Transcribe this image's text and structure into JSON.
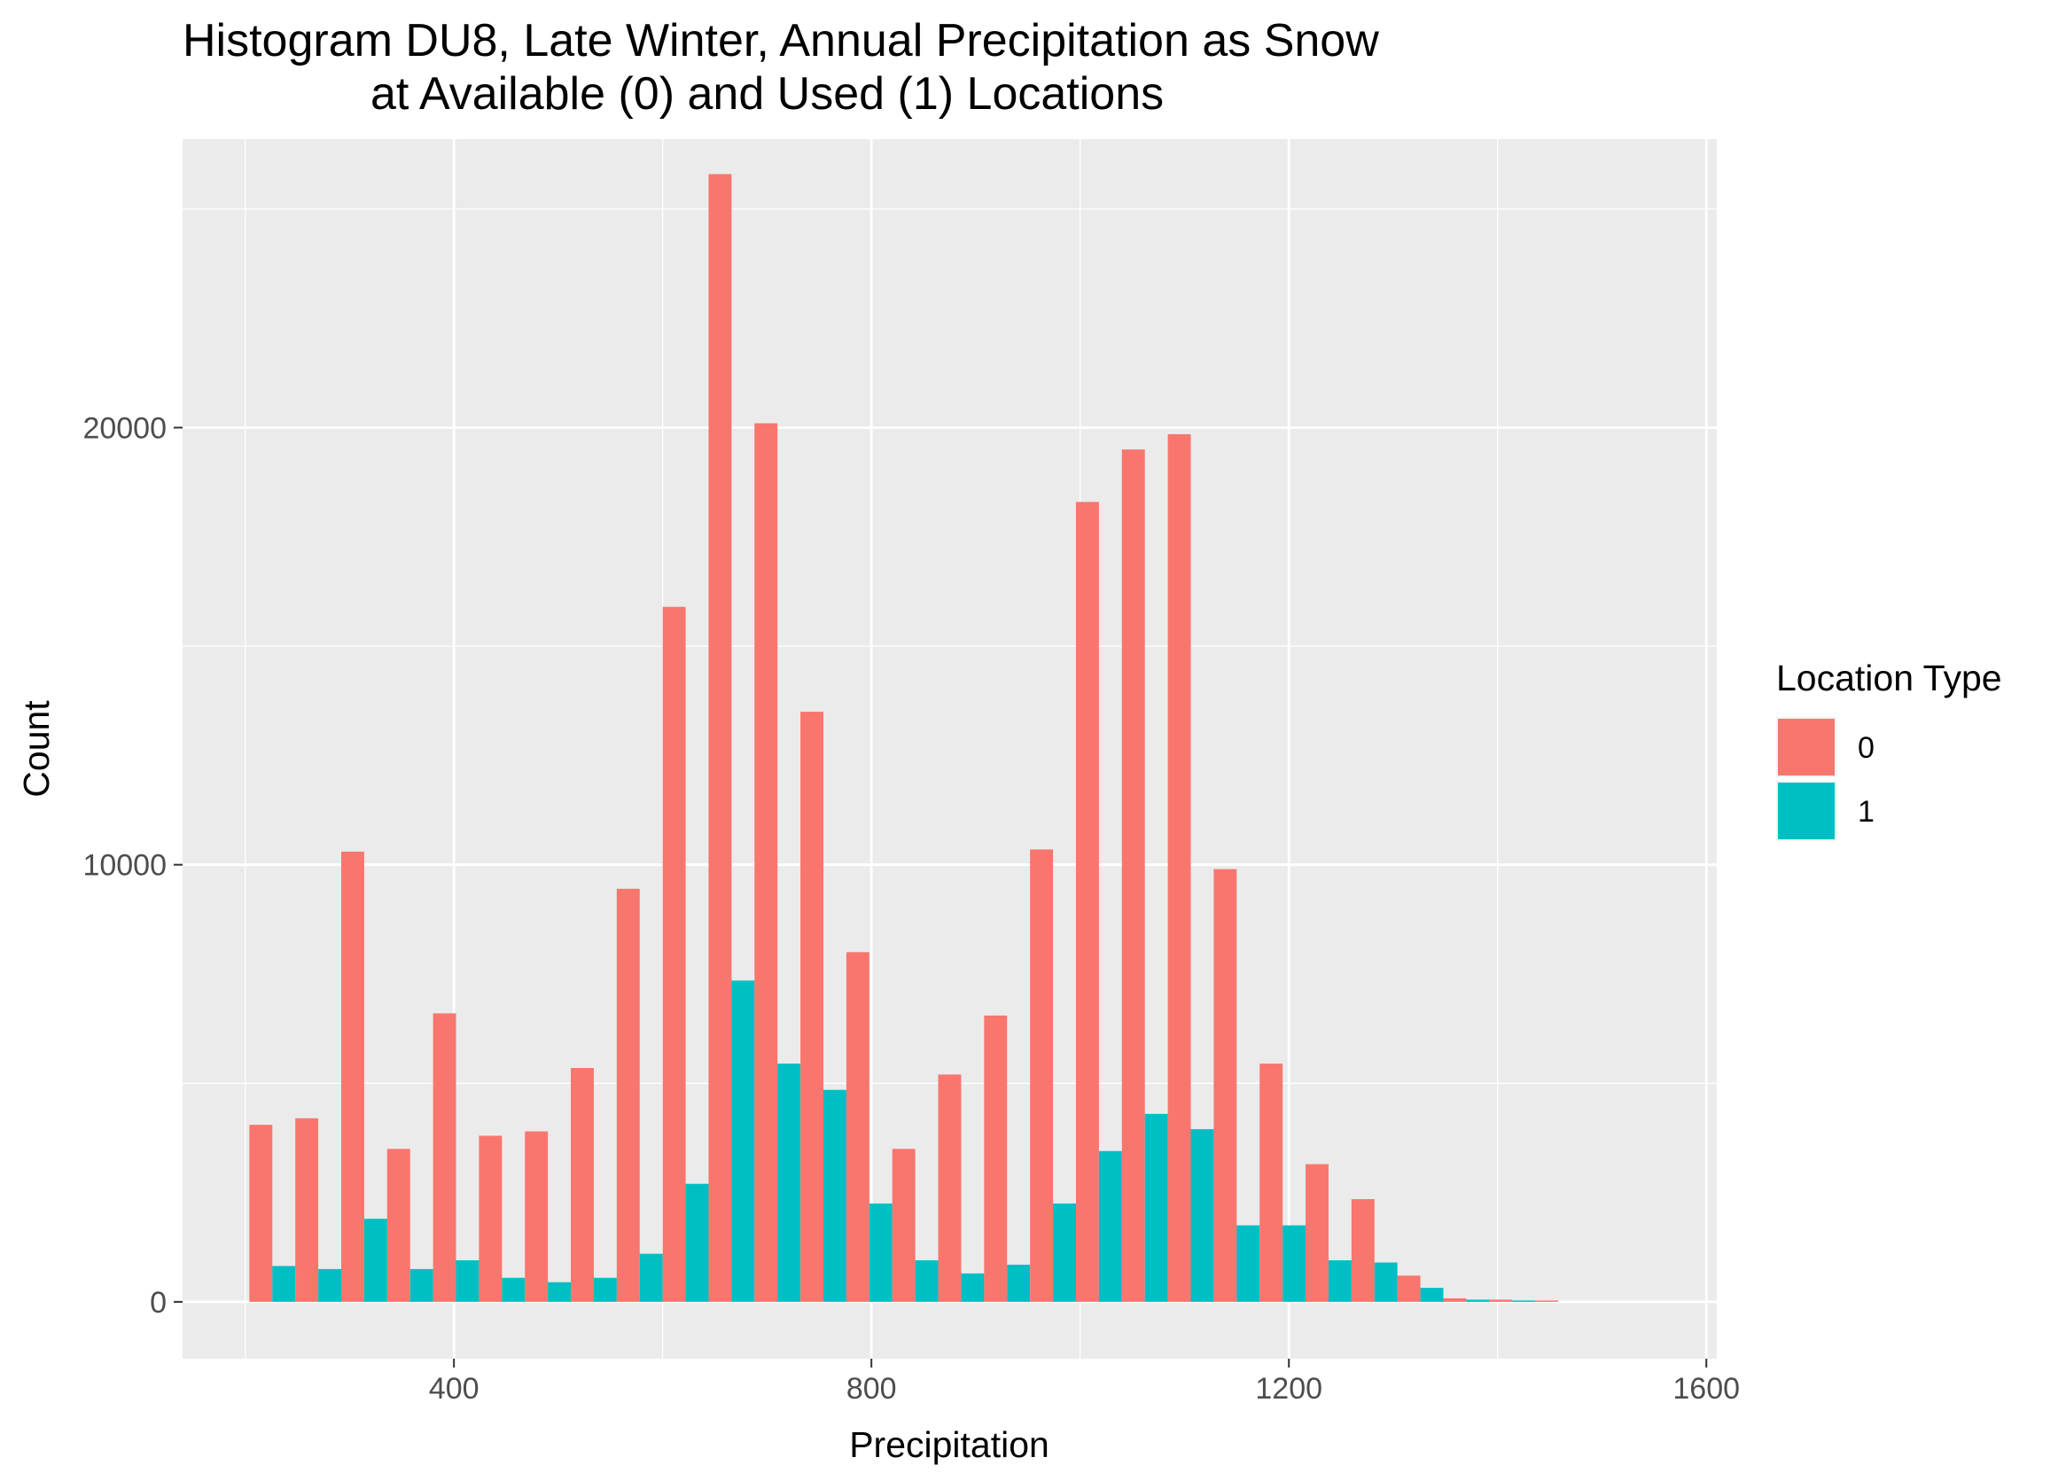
{
  "chart_data": {
    "type": "bar",
    "title": "Histogram DU8, Late Winter, Annual Precipitation as Snow\nat Available (0) and Used (1) Locations",
    "xlabel": "Precipitation",
    "ylabel": "Count",
    "xlim": [
      140,
      1610
    ],
    "ylim": [
      -1300,
      26600
    ],
    "x_ticks": [
      400,
      800,
      1200,
      1600
    ],
    "y_ticks": [
      0,
      10000,
      20000
    ],
    "grid": true,
    "legend": {
      "title": "Location Type",
      "placement": "right"
    },
    "bin_width": 44,
    "x": [
      226,
      270,
      314,
      358,
      402,
      446,
      490,
      534,
      578,
      622,
      666,
      710,
      754,
      798,
      842,
      886,
      930,
      974,
      1018,
      1062,
      1106,
      1150,
      1194,
      1238,
      1282,
      1326,
      1370,
      1414,
      1458,
      1502
    ],
    "series": [
      {
        "name": "0",
        "color": "#F8766D",
        "values": [
          4050,
          4200,
          10300,
          3500,
          6600,
          3800,
          3900,
          5350,
          9450,
          15900,
          25800,
          20100,
          13500,
          8000,
          3500,
          5200,
          6550,
          10350,
          18300,
          19500,
          19850,
          9900,
          5450,
          3150,
          2350,
          600,
          80,
          50,
          30,
          0
        ]
      },
      {
        "name": "1",
        "color": "#00BFC4",
        "values": [
          820,
          750,
          1900,
          750,
          950,
          550,
          450,
          550,
          1100,
          2700,
          7350,
          5450,
          4850,
          2250,
          950,
          650,
          850,
          2250,
          3450,
          4300,
          3950,
          1750,
          1750,
          950,
          900,
          320,
          50,
          30,
          0,
          0
        ]
      }
    ]
  }
}
